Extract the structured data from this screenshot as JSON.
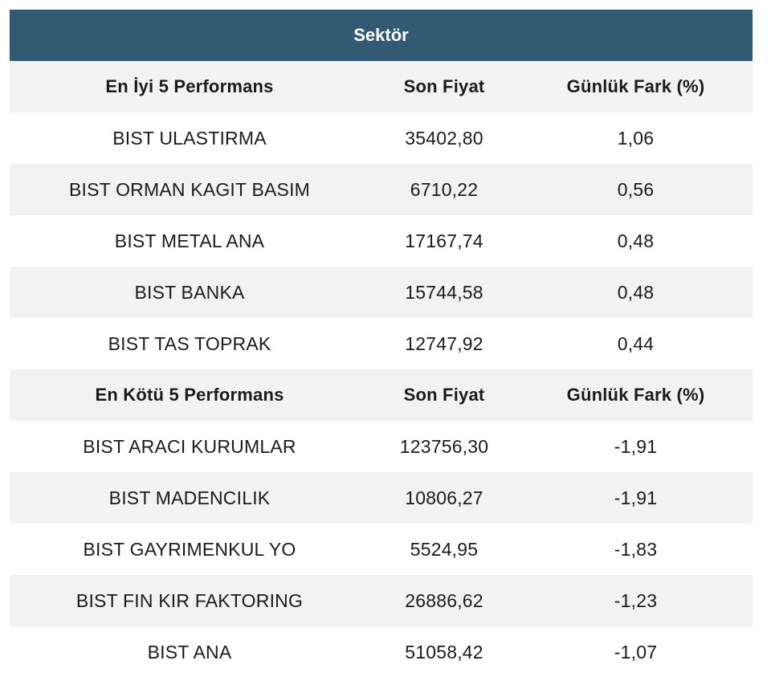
{
  "table": {
    "title": "Sektör",
    "best": {
      "header": [
        "En İyi 5 Performans",
        "Son Fiyat",
        "Günlük Fark (%)"
      ],
      "rows": [
        [
          "BIST ULASTIRMA",
          "35402,80",
          "1,06"
        ],
        [
          "BIST ORMAN KAGIT BASIM",
          "6710,22",
          "0,56"
        ],
        [
          "BIST METAL ANA",
          "17167,74",
          "0,48"
        ],
        [
          "BIST BANKA",
          "15744,58",
          "0,48"
        ],
        [
          "BIST TAS TOPRAK",
          "12747,92",
          "0,44"
        ]
      ]
    },
    "worst": {
      "header": [
        "En Kötü 5 Performans",
        "Son Fiyat",
        "Günlük Fark (%)"
      ],
      "rows": [
        [
          "BIST ARACI KURUMLAR",
          "123756,30",
          "-1,91"
        ],
        [
          "BIST MADENCILIK",
          "10806,27",
          "-1,91"
        ],
        [
          "BIST GAYRIMENKUL YO",
          "5524,95",
          "-1,83"
        ],
        [
          "BIST FIN KIR FAKTORING",
          "26886,62",
          "-1,23"
        ],
        [
          "BIST ANA",
          "51058,42",
          "-1,07"
        ]
      ]
    }
  },
  "colors": {
    "title_background": "#325b73",
    "title_text": "#ffffff",
    "stripe": "#f2f2f2"
  }
}
